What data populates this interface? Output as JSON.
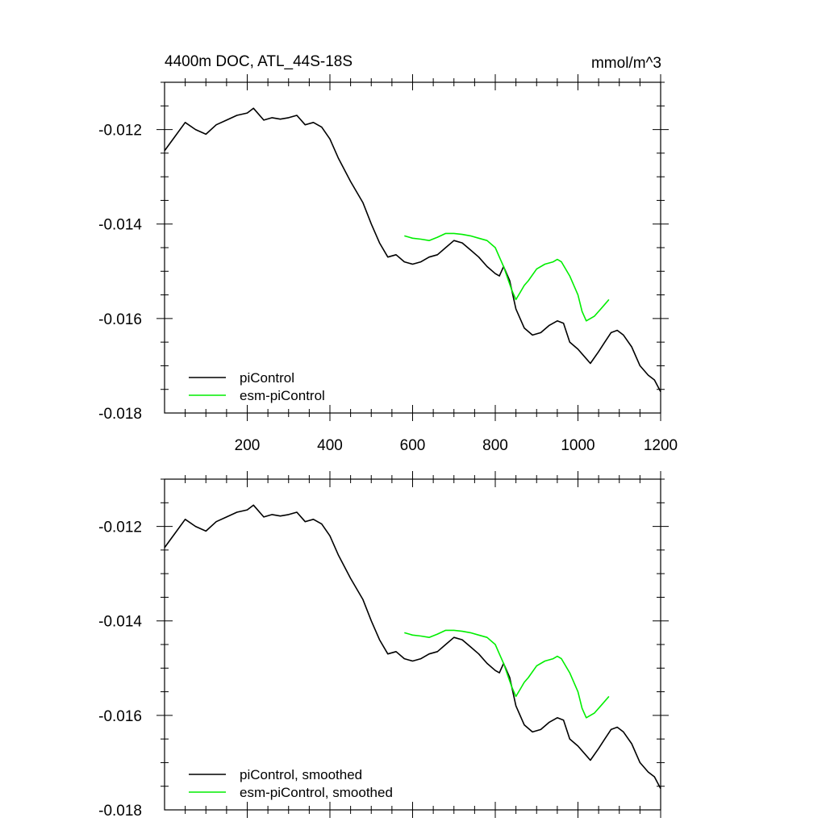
{
  "chart_data": [
    {
      "type": "line",
      "title": "4400m DOC, ATL_44S-18S",
      "units": "mmol/m^3",
      "xlim": [
        0,
        1200
      ],
      "ylim": [
        -0.018,
        -0.011
      ],
      "x_ticks": [
        200,
        400,
        600,
        800,
        1000,
        1200
      ],
      "x_tick_labels": [
        "200",
        "400",
        "600",
        "800",
        "1000",
        "1200"
      ],
      "y_ticks": [
        -0.012,
        -0.014,
        -0.016,
        -0.018
      ],
      "y_tick_labels": [
        "-0.012",
        "-0.014",
        "-0.016",
        "-0.018"
      ],
      "legend_position": "bottom-left",
      "series": [
        {
          "name": "piControl",
          "color": "#000000",
          "x": [
            0,
            25,
            50,
            75,
            100,
            125,
            150,
            175,
            200,
            215,
            240,
            260,
            280,
            300,
            320,
            340,
            360,
            380,
            400,
            420,
            450,
            480,
            500,
            520,
            540,
            560,
            580,
            600,
            620,
            640,
            660,
            680,
            700,
            720,
            740,
            760,
            780,
            800,
            810,
            820,
            835,
            850,
            870,
            890,
            910,
            930,
            950,
            965,
            980,
            1000,
            1015,
            1030,
            1050,
            1065,
            1080,
            1095,
            1110,
            1130,
            1150,
            1170,
            1185,
            1200
          ],
          "y": [
            -0.01245,
            -0.01215,
            -0.01185,
            -0.012,
            -0.0121,
            -0.0119,
            -0.0118,
            -0.0117,
            -0.01165,
            -0.01155,
            -0.0118,
            -0.01175,
            -0.01178,
            -0.01175,
            -0.0117,
            -0.0119,
            -0.01185,
            -0.01195,
            -0.0122,
            -0.0126,
            -0.0131,
            -0.01355,
            -0.014,
            -0.0144,
            -0.0147,
            -0.01465,
            -0.0148,
            -0.01485,
            -0.0148,
            -0.0147,
            -0.01465,
            -0.0145,
            -0.01435,
            -0.0144,
            -0.01455,
            -0.0147,
            -0.0149,
            -0.01505,
            -0.0151,
            -0.0149,
            -0.0152,
            -0.0158,
            -0.0162,
            -0.01635,
            -0.0163,
            -0.01615,
            -0.01605,
            -0.0161,
            -0.0165,
            -0.01665,
            -0.0168,
            -0.01695,
            -0.0167,
            -0.0165,
            -0.0163,
            -0.01625,
            -0.01635,
            -0.0166,
            -0.017,
            -0.0172,
            -0.0173,
            -0.01755
          ]
        },
        {
          "name": "esm-piControl",
          "color": "#00ee00",
          "x": [
            580,
            600,
            620,
            640,
            660,
            680,
            700,
            720,
            740,
            760,
            780,
            800,
            810,
            820,
            830,
            840,
            850,
            860,
            870,
            880,
            900,
            920,
            940,
            950,
            960,
            980,
            1000,
            1010,
            1020,
            1040,
            1060,
            1075
          ],
          "y": [
            -0.01425,
            -0.0143,
            -0.01432,
            -0.01435,
            -0.01428,
            -0.0142,
            -0.0142,
            -0.01422,
            -0.01425,
            -0.0143,
            -0.01435,
            -0.0145,
            -0.0147,
            -0.0149,
            -0.01515,
            -0.0154,
            -0.0156,
            -0.01545,
            -0.0153,
            -0.0152,
            -0.01495,
            -0.01485,
            -0.0148,
            -0.01475,
            -0.0148,
            -0.0151,
            -0.0155,
            -0.01585,
            -0.01605,
            -0.01595,
            -0.01575,
            -0.0156
          ]
        }
      ]
    },
    {
      "type": "line",
      "title": "",
      "xlim": [
        0,
        1200
      ],
      "ylim": [
        -0.018,
        -0.011
      ],
      "y_ticks": [
        -0.012,
        -0.014,
        -0.016,
        -0.018
      ],
      "y_tick_labels": [
        "-0.012",
        "-0.014",
        "-0.016",
        "-0.018"
      ],
      "legend_position": "bottom-left",
      "series": [
        {
          "name": "piControl, smoothed",
          "color": "#000000",
          "x": [
            0,
            25,
            50,
            75,
            100,
            125,
            150,
            175,
            200,
            215,
            240,
            260,
            280,
            300,
            320,
            340,
            360,
            380,
            400,
            420,
            450,
            480,
            500,
            520,
            540,
            560,
            580,
            600,
            620,
            640,
            660,
            680,
            700,
            720,
            740,
            760,
            780,
            800,
            810,
            820,
            835,
            850,
            870,
            890,
            910,
            930,
            950,
            965,
            980,
            1000,
            1015,
            1030,
            1050,
            1065,
            1080,
            1095,
            1110,
            1130,
            1150,
            1170,
            1185,
            1200
          ],
          "y": [
            -0.01245,
            -0.01215,
            -0.01185,
            -0.012,
            -0.0121,
            -0.0119,
            -0.0118,
            -0.0117,
            -0.01165,
            -0.01155,
            -0.0118,
            -0.01175,
            -0.01178,
            -0.01175,
            -0.0117,
            -0.0119,
            -0.01185,
            -0.01195,
            -0.0122,
            -0.0126,
            -0.0131,
            -0.01355,
            -0.014,
            -0.0144,
            -0.0147,
            -0.01465,
            -0.0148,
            -0.01485,
            -0.0148,
            -0.0147,
            -0.01465,
            -0.0145,
            -0.01435,
            -0.0144,
            -0.01455,
            -0.0147,
            -0.0149,
            -0.01505,
            -0.0151,
            -0.0149,
            -0.0152,
            -0.0158,
            -0.0162,
            -0.01635,
            -0.0163,
            -0.01615,
            -0.01605,
            -0.0161,
            -0.0165,
            -0.01665,
            -0.0168,
            -0.01695,
            -0.0167,
            -0.0165,
            -0.0163,
            -0.01625,
            -0.01635,
            -0.0166,
            -0.017,
            -0.0172,
            -0.0173,
            -0.01755
          ]
        },
        {
          "name": "esm-piControl, smoothed",
          "color": "#00ee00",
          "x": [
            580,
            600,
            620,
            640,
            660,
            680,
            700,
            720,
            740,
            760,
            780,
            800,
            810,
            820,
            830,
            840,
            850,
            860,
            870,
            880,
            900,
            920,
            940,
            950,
            960,
            980,
            1000,
            1010,
            1020,
            1040,
            1060,
            1075
          ],
          "y": [
            -0.01425,
            -0.0143,
            -0.01432,
            -0.01435,
            -0.01428,
            -0.0142,
            -0.0142,
            -0.01422,
            -0.01425,
            -0.0143,
            -0.01435,
            -0.0145,
            -0.0147,
            -0.0149,
            -0.01515,
            -0.0154,
            -0.0156,
            -0.01545,
            -0.0153,
            -0.0152,
            -0.01495,
            -0.01485,
            -0.0148,
            -0.01475,
            -0.0148,
            -0.0151,
            -0.0155,
            -0.01585,
            -0.01605,
            -0.01595,
            -0.01575,
            -0.0156
          ]
        }
      ]
    }
  ]
}
